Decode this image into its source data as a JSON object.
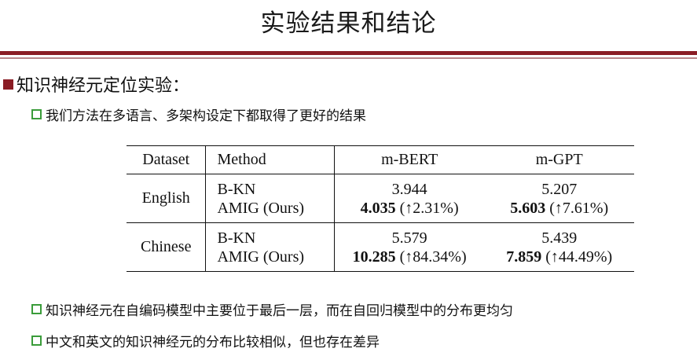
{
  "slide": {
    "title": "实验结果和结论",
    "heading": "知识神经元定位实验：",
    "bullets": [
      "我们方法在多语言、多架构设定下都取得了更好的结果",
      "知识神经元在自编码模型中主要位于最后一层，而在自回归模型中的分布更均匀",
      "中文和英文的知识神经元的分布比较相似，但也存在差异"
    ]
  },
  "table": {
    "headers": [
      "Dataset",
      "Method",
      "m-BERT",
      "m-GPT"
    ],
    "groups": [
      {
        "dataset": "English",
        "rows": [
          {
            "method": "B-KN",
            "mbert": "3.944",
            "mgpt": "5.207"
          },
          {
            "method": "AMIG (Ours)",
            "mbert": "4.035",
            "mbert_delta": "(↑2.31%)",
            "mgpt": "5.603",
            "mgpt_delta": "(↑7.61%)"
          }
        ]
      },
      {
        "dataset": "Chinese",
        "rows": [
          {
            "method": "B-KN",
            "mbert": "5.579",
            "mgpt": "5.439"
          },
          {
            "method": "AMIG (Ours)",
            "mbert": "10.285",
            "mbert_delta": "(↑84.34%)",
            "mgpt": "7.859",
            "mgpt_delta": "(↑44.49%)"
          }
        ]
      }
    ]
  },
  "colors": {
    "accent_dark_red": "#8a1c24",
    "bullet_green": "#3a9c3a"
  },
  "icons": {
    "heading_marker": "filled-square-icon",
    "bullet_marker": "outline-square-icon"
  }
}
